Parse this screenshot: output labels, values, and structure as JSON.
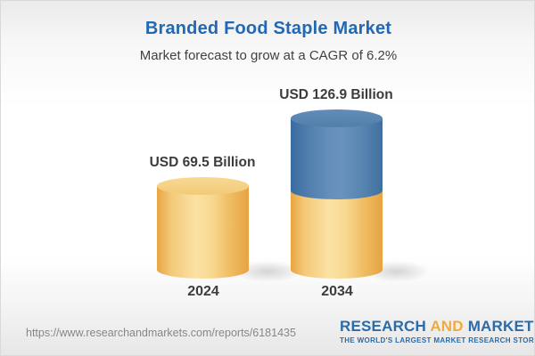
{
  "header": {
    "title": "Branded Food Staple Market",
    "subtitle": "Market forecast to grow at a CAGR of 6.2%"
  },
  "chart_data": {
    "type": "bar",
    "title": "Branded Food Staple Market",
    "subtitle": "Market forecast to grow at a CAGR of 6.2%",
    "unit": "USD Billion",
    "cagr_percent": 6.2,
    "categories": [
      "2024",
      "2034"
    ],
    "values": [
      69.5,
      126.9
    ],
    "value_labels": [
      "USD 69.5 Billion",
      "USD 126.9 Billion"
    ],
    "stacked_segments": [
      {
        "category": "2024",
        "segments": [
          {
            "name": "base",
            "value": 69.5,
            "color": "#f3cd80"
          }
        ]
      },
      {
        "category": "2034",
        "segments": [
          {
            "name": "base",
            "value": 69.5,
            "color": "#f3cd80"
          },
          {
            "name": "growth",
            "value": 57.4,
            "color": "#4d7dab"
          }
        ]
      }
    ],
    "bar_shape": "cylinder",
    "grid": false,
    "legend_position": "none",
    "ylim": [
      0,
      140
    ]
  },
  "colors": {
    "title_blue": "#2368b2",
    "bar_yellow_edge": "#e8a542",
    "bar_yellow_center": "#fbe2a4",
    "bar_blue_edge": "#3a6ba1",
    "bar_blue_center": "#6a92bf",
    "label_dark": "#3c3c3c",
    "url_gray": "#878787",
    "logo_blue": "#2a6ba8",
    "logo_gold": "#efac3c"
  },
  "footer": {
    "url": "https://www.researchandmarkets.com/reports/6181435",
    "logo": {
      "word1": "RESEARCH",
      "word2": "AND",
      "word3": "MARKETS",
      "tagline": "THE WORLD'S LARGEST MARKET RESEARCH STORE"
    }
  }
}
